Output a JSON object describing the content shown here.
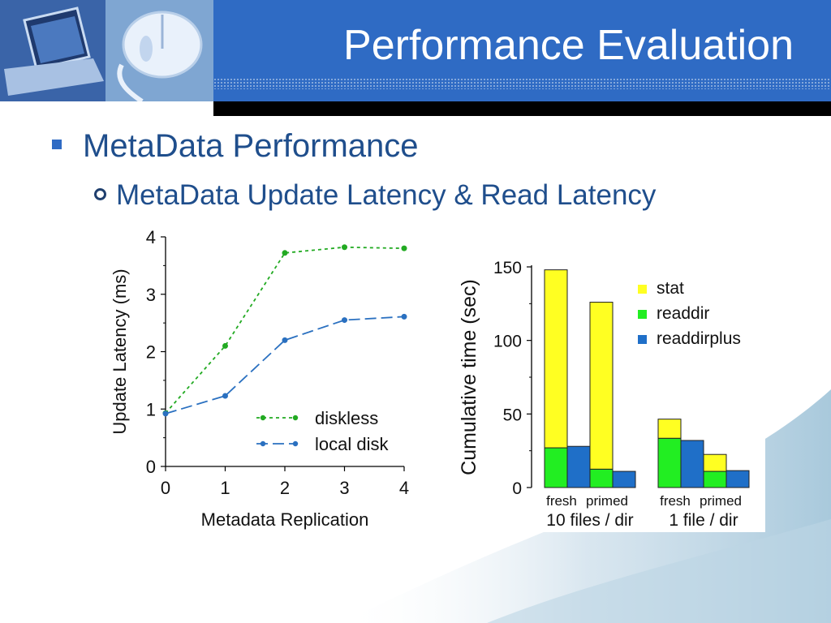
{
  "slide": {
    "title": "Performance Evaluation",
    "bullets": [
      {
        "text": "MetaData Performance"
      },
      {
        "text": "MetaData Update Latency & Read Latency"
      }
    ],
    "colors": {
      "title_bar": "#2f6bc4",
      "bullet_text": "#1f4e8c",
      "band": "#000000"
    }
  },
  "chart_data": [
    {
      "type": "line",
      "xlabel": "Metadata Replication",
      "ylabel": "Update Latency (ms)",
      "x": [
        0,
        1,
        2,
        3,
        4
      ],
      "x_ticks": [
        "0",
        "1",
        "2",
        "3",
        "4"
      ],
      "y_ticks": [
        "0",
        "1",
        "2",
        "3",
        "4"
      ],
      "xlim": [
        0,
        4
      ],
      "ylim": [
        0,
        4
      ],
      "grid": false,
      "legend_position": "bottom-right",
      "series": [
        {
          "name": "diskless",
          "values": [
            0.93,
            2.1,
            3.72,
            3.82,
            3.8
          ],
          "color": "#22aa22",
          "dash": "short"
        },
        {
          "name": "local disk",
          "values": [
            0.92,
            1.23,
            2.2,
            2.55,
            2.61
          ],
          "color": "#2a70c0",
          "dash": "long"
        }
      ]
    },
    {
      "type": "bar",
      "stacked": true,
      "ylabel": "Cumulative time (sec)",
      "ylim": [
        0,
        150
      ],
      "y_ticks": [
        "0",
        "50",
        "100",
        "150"
      ],
      "grid": false,
      "legend_position": "top-right",
      "groups": [
        {
          "label": "10 files / dir",
          "bars": [
            {
              "label": "fresh",
              "stack": [
                {
                  "series": "readdir",
                  "value": 27
                },
                {
                  "series": "stat",
                  "value": 121
                }
              ]
            },
            {
              "label": "",
              "stack": [
                {
                  "series": "readdirplus",
                  "value": 28
                }
              ]
            },
            {
              "label": "primed",
              "stack": [
                {
                  "series": "readdir",
                  "value": 12.5
                },
                {
                  "series": "stat",
                  "value": 113.5
                }
              ]
            },
            {
              "label": "",
              "stack": [
                {
                  "series": "readdirplus",
                  "value": 11
                }
              ]
            }
          ]
        },
        {
          "label": "1 file / dir",
          "bars": [
            {
              "label": "fresh",
              "stack": [
                {
                  "series": "readdir",
                  "value": 33.5
                },
                {
                  "series": "stat",
                  "value": 13
                }
              ]
            },
            {
              "label": "",
              "stack": [
                {
                  "series": "readdirplus",
                  "value": 32
                }
              ]
            },
            {
              "label": "primed",
              "stack": [
                {
                  "series": "readdir",
                  "value": 11
                },
                {
                  "series": "stat",
                  "value": 11.5
                }
              ]
            },
            {
              "label": "",
              "stack": [
                {
                  "series": "readdirplus",
                  "value": 11.5
                }
              ]
            }
          ]
        }
      ],
      "series": [
        {
          "name": "stat",
          "color": "#ffff22"
        },
        {
          "name": "readdir",
          "color": "#22ee22"
        },
        {
          "name": "readdirplus",
          "color": "#1f6fc8"
        }
      ]
    }
  ]
}
